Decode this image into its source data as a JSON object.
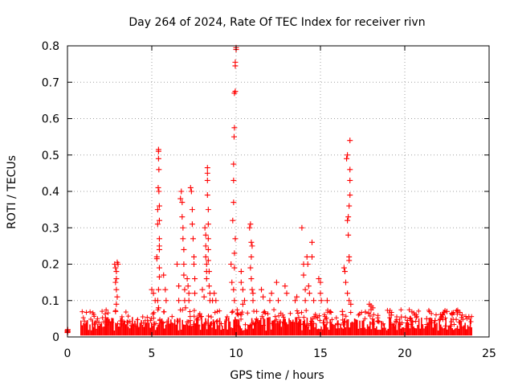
{
  "chart_data": {
    "type": "scatter",
    "title": "Day 264 of 2024, Rate Of TEC Index for receiver rivn",
    "xlabel": "GPS time / hours",
    "ylabel": "ROTI / TECUs",
    "xlim": [
      0,
      25
    ],
    "ylim": [
      0,
      0.8
    ],
    "xticks": [
      0,
      5,
      10,
      15,
      20,
      25
    ],
    "xtick_labels": [
      "0",
      "5",
      "10",
      "15",
      "20",
      "25"
    ],
    "yticks": [
      0,
      0.1,
      0.2,
      0.3,
      0.4,
      0.5,
      0.6,
      0.7,
      0.8
    ],
    "ytick_labels": [
      "0",
      "0.1",
      "0.2",
      "0.3",
      "0.4",
      "0.5",
      "0.6",
      "0.7",
      "0.8"
    ],
    "grid": true,
    "marker": "+",
    "color": "#ff0000",
    "background_band": {
      "description": "dense cluster of ROTI values near the baseline",
      "x_start": 0.8,
      "x_end": 24.0,
      "y_low": 0.0,
      "y_high_typical": 0.05
    },
    "series": [
      {
        "name": "ROTI",
        "points": [
          [
            0.0,
            0.012
          ],
          [
            0.0,
            0.015
          ],
          [
            0.0,
            0.018
          ],
          [
            0.02,
            0.02
          ],
          [
            0.02,
            0.014
          ],
          [
            2.8,
            0.2
          ],
          [
            2.85,
            0.19
          ],
          [
            2.9,
            0.18
          ],
          [
            2.9,
            0.16
          ],
          [
            2.95,
            0.205
          ],
          [
            3.0,
            0.2
          ],
          [
            2.85,
            0.15
          ],
          [
            2.9,
            0.13
          ],
          [
            2.95,
            0.11
          ],
          [
            2.9,
            0.09
          ],
          [
            2.85,
            0.07
          ],
          [
            5.0,
            0.13
          ],
          [
            5.1,
            0.12
          ],
          [
            5.2,
            0.1
          ],
          [
            5.3,
            0.215
          ],
          [
            5.3,
            0.22
          ],
          [
            5.35,
            0.31
          ],
          [
            5.35,
            0.35
          ],
          [
            5.38,
            0.41
          ],
          [
            5.4,
            0.515
          ],
          [
            5.4,
            0.51
          ],
          [
            5.4,
            0.49
          ],
          [
            5.42,
            0.46
          ],
          [
            5.42,
            0.4
          ],
          [
            5.45,
            0.36
          ],
          [
            5.45,
            0.32
          ],
          [
            5.45,
            0.27
          ],
          [
            5.45,
            0.25
          ],
          [
            5.45,
            0.24
          ],
          [
            5.45,
            0.19
          ],
          [
            5.45,
            0.165
          ],
          [
            5.4,
            0.13
          ],
          [
            5.35,
            0.1
          ],
          [
            5.4,
            0.08
          ],
          [
            5.7,
            0.17
          ],
          [
            5.8,
            0.13
          ],
          [
            5.85,
            0.1
          ],
          [
            6.5,
            0.2
          ],
          [
            6.6,
            0.14
          ],
          [
            6.6,
            0.1
          ],
          [
            6.7,
            0.38
          ],
          [
            6.75,
            0.4
          ],
          [
            6.8,
            0.37
          ],
          [
            6.8,
            0.33
          ],
          [
            6.85,
            0.3
          ],
          [
            6.85,
            0.27
          ],
          [
            6.9,
            0.24
          ],
          [
            6.9,
            0.2
          ],
          [
            6.9,
            0.17
          ],
          [
            6.95,
            0.13
          ],
          [
            6.95,
            0.1
          ],
          [
            7.0,
            0.08
          ],
          [
            7.1,
            0.16
          ],
          [
            7.15,
            0.14
          ],
          [
            7.2,
            0.12
          ],
          [
            7.2,
            0.1
          ],
          [
            7.3,
            0.41
          ],
          [
            7.35,
            0.4
          ],
          [
            7.4,
            0.35
          ],
          [
            7.4,
            0.31
          ],
          [
            7.45,
            0.27
          ],
          [
            7.5,
            0.22
          ],
          [
            7.5,
            0.2
          ],
          [
            7.55,
            0.16
          ],
          [
            7.55,
            0.12
          ],
          [
            8.0,
            0.13
          ],
          [
            8.1,
            0.11
          ],
          [
            8.15,
            0.3
          ],
          [
            8.2,
            0.28
          ],
          [
            8.2,
            0.25
          ],
          [
            8.2,
            0.22
          ],
          [
            8.25,
            0.2
          ],
          [
            8.25,
            0.18
          ],
          [
            8.25,
            0.16
          ],
          [
            8.3,
            0.465
          ],
          [
            8.3,
            0.45
          ],
          [
            8.3,
            0.43
          ],
          [
            8.3,
            0.39
          ],
          [
            8.35,
            0.35
          ],
          [
            8.35,
            0.31
          ],
          [
            8.35,
            0.27
          ],
          [
            8.35,
            0.24
          ],
          [
            8.35,
            0.21
          ],
          [
            8.4,
            0.18
          ],
          [
            8.4,
            0.14
          ],
          [
            8.45,
            0.12
          ],
          [
            8.45,
            0.1
          ],
          [
            8.6,
            0.1
          ],
          [
            8.7,
            0.12
          ],
          [
            8.8,
            0.1
          ],
          [
            9.7,
            0.2
          ],
          [
            9.75,
            0.15
          ],
          [
            9.8,
            0.32
          ],
          [
            9.85,
            0.37
          ],
          [
            9.85,
            0.43
          ],
          [
            9.85,
            0.475
          ],
          [
            9.88,
            0.55
          ],
          [
            9.9,
            0.575
          ],
          [
            9.9,
            0.67
          ],
          [
            9.95,
            0.675
          ],
          [
            9.95,
            0.745
          ],
          [
            9.95,
            0.755
          ],
          [
            10.0,
            0.79
          ],
          [
            10.0,
            0.795
          ],
          [
            9.95,
            0.27
          ],
          [
            9.9,
            0.23
          ],
          [
            9.9,
            0.19
          ],
          [
            9.85,
            0.13
          ],
          [
            9.9,
            0.1
          ],
          [
            10.3,
            0.18
          ],
          [
            10.3,
            0.15
          ],
          [
            10.4,
            0.13
          ],
          [
            10.5,
            0.1
          ],
          [
            10.4,
            0.09
          ],
          [
            10.8,
            0.3
          ],
          [
            10.85,
            0.31
          ],
          [
            10.9,
            0.26
          ],
          [
            10.95,
            0.25
          ],
          [
            10.9,
            0.22
          ],
          [
            10.85,
            0.19
          ],
          [
            10.9,
            0.16
          ],
          [
            10.95,
            0.13
          ],
          [
            11.0,
            0.12
          ],
          [
            11.0,
            0.1
          ],
          [
            11.5,
            0.13
          ],
          [
            11.6,
            0.11
          ],
          [
            12.0,
            0.1
          ],
          [
            12.1,
            0.12
          ],
          [
            12.4,
            0.15
          ],
          [
            12.5,
            0.1
          ],
          [
            12.9,
            0.14
          ],
          [
            13.0,
            0.12
          ],
          [
            13.5,
            0.1
          ],
          [
            13.6,
            0.11
          ],
          [
            13.9,
            0.3
          ],
          [
            14.0,
            0.2
          ],
          [
            14.0,
            0.17
          ],
          [
            14.1,
            0.13
          ],
          [
            14.1,
            0.1
          ],
          [
            14.2,
            0.22
          ],
          [
            14.25,
            0.2
          ],
          [
            14.3,
            0.14
          ],
          [
            14.35,
            0.12
          ],
          [
            14.5,
            0.22
          ],
          [
            14.5,
            0.26
          ],
          [
            14.6,
            0.1
          ],
          [
            14.9,
            0.16
          ],
          [
            15.0,
            0.15
          ],
          [
            15.0,
            0.12
          ],
          [
            15.05,
            0.1
          ],
          [
            15.4,
            0.1
          ],
          [
            16.3,
            0.07
          ],
          [
            16.4,
            0.19
          ],
          [
            16.45,
            0.18
          ],
          [
            16.5,
            0.15
          ],
          [
            16.55,
            0.49
          ],
          [
            16.6,
            0.5
          ],
          [
            16.6,
            0.32
          ],
          [
            16.65,
            0.33
          ],
          [
            16.65,
            0.28
          ],
          [
            16.7,
            0.22
          ],
          [
            16.7,
            0.21
          ],
          [
            16.75,
            0.54
          ],
          [
            16.75,
            0.46
          ],
          [
            16.75,
            0.43
          ],
          [
            16.75,
            0.39
          ],
          [
            16.7,
            0.36
          ],
          [
            16.6,
            0.12
          ],
          [
            16.7,
            0.1
          ],
          [
            16.8,
            0.09
          ],
          [
            17.9,
            0.09
          ],
          [
            18.0,
            0.085
          ],
          [
            18.1,
            0.08
          ],
          [
            18.0,
            0.075
          ],
          [
            19.2,
            0.06
          ],
          [
            19.8,
            0.055
          ],
          [
            20.3,
            0.05
          ],
          [
            20.6,
            0.06
          ],
          [
            21.3,
            0.05
          ],
          [
            21.8,
            0.045
          ],
          [
            22.5,
            0.07
          ],
          [
            22.8,
            0.065
          ],
          [
            23.4,
            0.06
          ],
          [
            23.8,
            0.055
          ]
        ]
      }
    ]
  }
}
